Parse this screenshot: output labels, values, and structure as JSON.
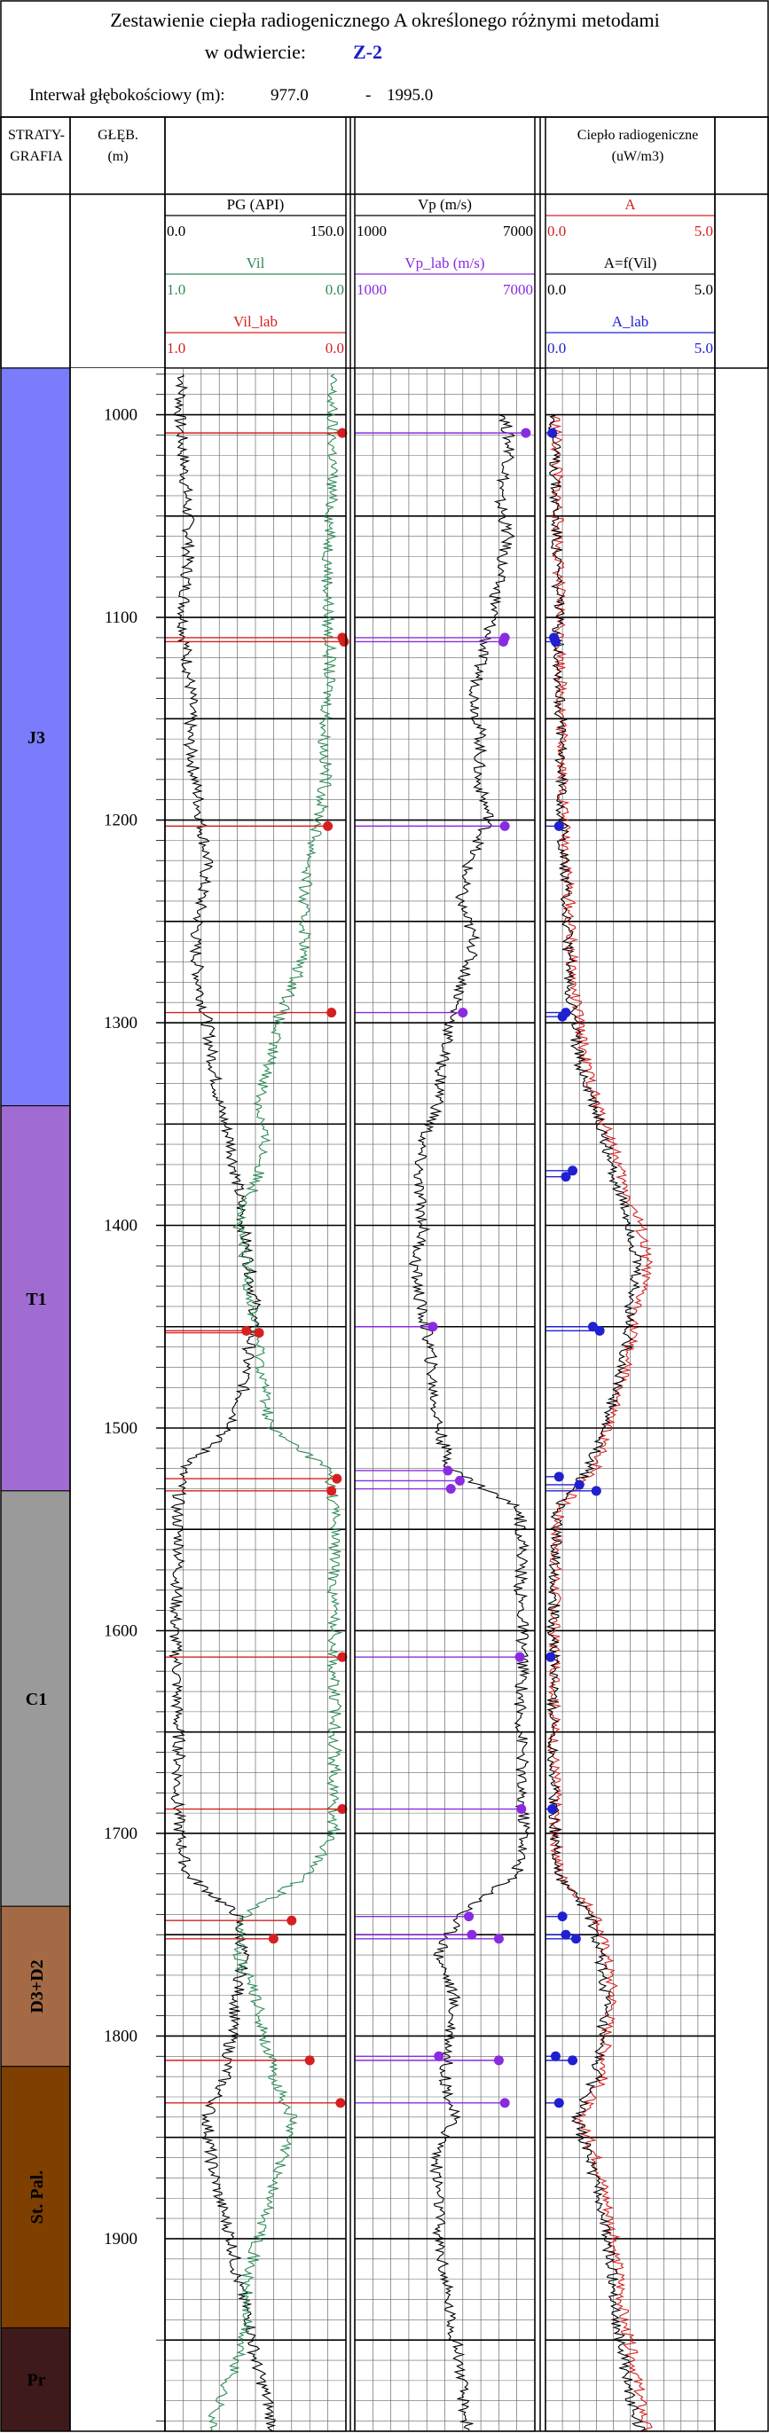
{
  "header": {
    "title_line1": "Zestawienie ciepła radiogenicznego A określonego różnymi metodami",
    "title_line2": "w odwiercie:",
    "well_name": "Z-2",
    "interval_label": "Interwał głębokościowy (m):",
    "interval_top": "977.0",
    "interval_separator": "-",
    "interval_bottom": "1995.0"
  },
  "columns": {
    "strat_header_line1": "STRATY-",
    "strat_header_line2": "GRAFIA",
    "depth_header_line1": "GŁĘB.",
    "depth_header_line2": "(m)",
    "heat_header_line1": "Ciepło radiogeniczne",
    "heat_header_line2": "(uW/m3)"
  },
  "stratigraphy": [
    {
      "label": "J3",
      "top": 977.0,
      "bottom": 1341.0,
      "color": "#7b7cfb"
    },
    {
      "label": "T1",
      "top": 1341.0,
      "bottom": 1531.0,
      "color": "#a06cd1"
    },
    {
      "label": "C1",
      "top": 1531.0,
      "bottom": 1736.0,
      "color": "#9a9a9a"
    },
    {
      "label": "D3+D2",
      "top": 1736.0,
      "bottom": 1815.0,
      "color": "#a36a45"
    },
    {
      "label": "St. Pal.",
      "top": 1815.0,
      "bottom": 1944.0,
      "color": "#7e3f00"
    },
    {
      "label": "Pr",
      "top": 1944.0,
      "bottom": 1995.0,
      "color": "#3e1a1a"
    }
  ],
  "chart_data": {
    "type": "line",
    "depth_axis": {
      "label": "GŁĘB. (m)",
      "range": [
        977.0,
        1995.0
      ],
      "ticks": [
        1000,
        1100,
        1200,
        1300,
        1400,
        1500,
        1600,
        1700,
        1800,
        1900
      ]
    },
    "tracks": [
      {
        "id": "track1",
        "curves": [
          {
            "name": "PG (API)",
            "min": "0.0",
            "max": "150.0",
            "color": "#000000",
            "kind": "log",
            "depths": [
              980,
              1000,
              1020,
              1040,
              1060,
              1080,
              1100,
              1120,
              1140,
              1160,
              1180,
              1200,
              1220,
              1240,
              1260,
              1280,
              1300,
              1320,
              1340,
              1360,
              1380,
              1400,
              1420,
              1440,
              1460,
              1480,
              1500,
              1520,
              1540,
              1560,
              1580,
              1600,
              1620,
              1640,
              1660,
              1680,
              1700,
              1720,
              1740,
              1760,
              1780,
              1800,
              1820,
              1840,
              1860,
              1880,
              1900,
              1920,
              1940,
              1960,
              1980,
              1995
            ],
            "values": [
              15,
              12,
              15,
              18,
              20,
              18,
              15,
              18,
              22,
              20,
              25,
              30,
              35,
              30,
              25,
              28,
              35,
              40,
              45,
              55,
              60,
              65,
              70,
              75,
              70,
              65,
              55,
              15,
              10,
              12,
              10,
              8,
              10,
              10,
              12,
              10,
              12,
              18,
              60,
              65,
              60,
              55,
              50,
              35,
              38,
              45,
              55,
              60,
              70,
              75,
              85,
              90
            ]
          },
          {
            "name": "Vil",
            "min": "1.0",
            "max": "0.0",
            "color": "#2e8b57",
            "kind": "log",
            "depths": [
              980,
              1000,
              1020,
              1040,
              1060,
              1080,
              1100,
              1120,
              1140,
              1160,
              1180,
              1200,
              1220,
              1240,
              1260,
              1280,
              1300,
              1320,
              1340,
              1360,
              1380,
              1400,
              1420,
              1440,
              1460,
              1480,
              1500,
              1520,
              1540,
              1560,
              1580,
              1600,
              1620,
              1640,
              1660,
              1680,
              1700,
              1720,
              1740,
              1760,
              1780,
              1800,
              1820,
              1840,
              1860,
              1880,
              1900,
              1920,
              1940,
              1960,
              1980,
              1995
            ],
            "values": [
              0.08,
              0.08,
              0.07,
              0.08,
              0.09,
              0.1,
              0.1,
              0.09,
              0.1,
              0.12,
              0.11,
              0.15,
              0.2,
              0.24,
              0.22,
              0.28,
              0.38,
              0.42,
              0.48,
              0.45,
              0.5,
              0.6,
              0.55,
              0.52,
              0.48,
              0.45,
              0.42,
              0.1,
              0.06,
              0.06,
              0.07,
              0.06,
              0.07,
              0.06,
              0.06,
              0.07,
              0.07,
              0.2,
              0.55,
              0.6,
              0.5,
              0.45,
              0.4,
              0.3,
              0.35,
              0.42,
              0.48,
              0.55,
              0.55,
              0.6,
              0.7,
              0.75
            ]
          },
          {
            "name": "Vil_lab",
            "min": "1.0",
            "max": "0.0",
            "color": "#d62020",
            "kind": "points",
            "depths": [
              1009,
              1110,
              1112,
              1203,
              1295,
              1452,
              1453,
              1525,
              1531,
              1613,
              1688,
              1743,
              1752,
              1812,
              1833
            ],
            "values": [
              0.02,
              0.02,
              0.01,
              0.1,
              0.08,
              0.55,
              0.48,
              0.05,
              0.08,
              0.02,
              0.02,
              0.3,
              0.4,
              0.2,
              0.03
            ]
          }
        ]
      },
      {
        "id": "track2",
        "curves": [
          {
            "name": "Vp (m/s)",
            "min": "1000",
            "max": "7000",
            "color": "#000000",
            "kind": "log",
            "depths": [
              1000,
              1020,
              1040,
              1060,
              1080,
              1100,
              1120,
              1140,
              1160,
              1180,
              1200,
              1220,
              1240,
              1260,
              1280,
              1300,
              1320,
              1340,
              1360,
              1380,
              1400,
              1420,
              1440,
              1460,
              1480,
              1500,
              1520,
              1540,
              1560,
              1580,
              1600,
              1620,
              1640,
              1660,
              1680,
              1700,
              1720,
              1740,
              1760,
              1780,
              1800,
              1820,
              1840,
              1860,
              1880,
              1900,
              1920,
              1940,
              1960,
              1980,
              1995
            ],
            "values": [
              6000,
              6200,
              5800,
              6100,
              5800,
              5600,
              5200,
              5000,
              5200,
              5100,
              5500,
              4800,
              4500,
              5000,
              4600,
              4200,
              3900,
              3800,
              3200,
              3100,
              3300,
              3000,
              3200,
              3500,
              3600,
              3800,
              4200,
              6500,
              6600,
              6500,
              6600,
              6600,
              6500,
              6600,
              6500,
              6700,
              6400,
              4500,
              3800,
              4300,
              4200,
              4000,
              4300,
              3700,
              3800,
              3800,
              4000,
              4200,
              4500,
              4600,
              4800
            ]
          },
          {
            "name": "Vp_lab (m/s)",
            "min": "1000",
            "max": "7000",
            "color": "#8a2be2",
            "kind": "points",
            "depths": [
              1009,
              1110,
              1112,
              1203,
              1295,
              1450,
              1521,
              1526,
              1530,
              1613,
              1688,
              1741,
              1750,
              1752,
              1810,
              1812,
              1833
            ],
            "values": [
              6700,
              6000,
              5950,
              6000,
              4600,
              3600,
              4100,
              4500,
              4200,
              6500,
              6550,
              4800,
              4900,
              5800,
              3800,
              5800,
              6000
            ]
          }
        ]
      },
      {
        "id": "track3",
        "curves": [
          {
            "name": "A",
            "min": "0.0",
            "max": "5.0",
            "color": "#d62020",
            "kind": "log",
            "depths": [
              1000,
              1040,
              1080,
              1120,
              1160,
              1200,
              1240,
              1280,
              1320,
              1340,
              1360,
              1380,
              1400,
              1420,
              1440,
              1460,
              1480,
              1500,
              1520,
              1540,
              1560,
              1580,
              1600,
              1620,
              1640,
              1660,
              1680,
              1700,
              1720,
              1740,
              1760,
              1780,
              1800,
              1820,
              1840,
              1860,
              1880,
              1900,
              1920,
              1940,
              1960,
              1980,
              1995
            ],
            "values": [
              0.3,
              0.35,
              0.4,
              0.45,
              0.5,
              0.55,
              0.7,
              0.8,
              1.2,
              1.5,
              2.0,
              2.3,
              2.8,
              3.0,
              2.7,
              2.5,
              2.2,
              1.8,
              1.5,
              0.4,
              0.3,
              0.3,
              0.25,
              0.3,
              0.25,
              0.25,
              0.3,
              0.3,
              0.4,
              1.5,
              1.8,
              2.0,
              1.8,
              1.7,
              1.0,
              1.5,
              1.8,
              2.0,
              2.2,
              2.3,
              2.6,
              2.8,
              3.0
            ]
          },
          {
            "name": "A=f(Vil)",
            "min": "0.0",
            "max": "5.0",
            "color": "#000000",
            "kind": "log",
            "depths": [
              1000,
              1040,
              1080,
              1120,
              1160,
              1200,
              1240,
              1280,
              1320,
              1340,
              1360,
              1380,
              1400,
              1420,
              1440,
              1460,
              1480,
              1500,
              1520,
              1540,
              1560,
              1580,
              1600,
              1620,
              1640,
              1660,
              1680,
              1700,
              1720,
              1740,
              1760,
              1780,
              1800,
              1820,
              1840,
              1860,
              1880,
              1900,
              1920,
              1940,
              1960,
              1980,
              1995
            ],
            "values": [
              0.25,
              0.3,
              0.35,
              0.4,
              0.45,
              0.5,
              0.6,
              0.7,
              1.0,
              1.4,
              1.8,
              2.1,
              2.5,
              2.7,
              2.5,
              2.4,
              2.1,
              1.7,
              1.3,
              0.35,
              0.3,
              0.28,
              0.22,
              0.25,
              0.22,
              0.22,
              0.25,
              0.28,
              0.35,
              1.3,
              1.6,
              1.8,
              1.6,
              1.5,
              0.9,
              1.3,
              1.6,
              1.8,
              2.0,
              2.1,
              2.3,
              2.5,
              2.8
            ]
          },
          {
            "name": "A_lab",
            "min": "0.0",
            "max": "5.0",
            "color": "#2020d0",
            "kind": "points",
            "depths": [
              1009,
              1110,
              1112,
              1203,
              1295,
              1297,
              1373,
              1376,
              1450,
              1452,
              1524,
              1528,
              1531,
              1613,
              1688,
              1741,
              1750,
              1752,
              1810,
              1812,
              1833
            ],
            "values": [
              0.2,
              0.25,
              0.3,
              0.4,
              0.6,
              0.5,
              0.8,
              0.6,
              1.4,
              1.6,
              0.4,
              1.0,
              1.5,
              0.15,
              0.2,
              0.5,
              0.6,
              0.9,
              0.3,
              0.8,
              0.4
            ]
          }
        ]
      }
    ]
  }
}
